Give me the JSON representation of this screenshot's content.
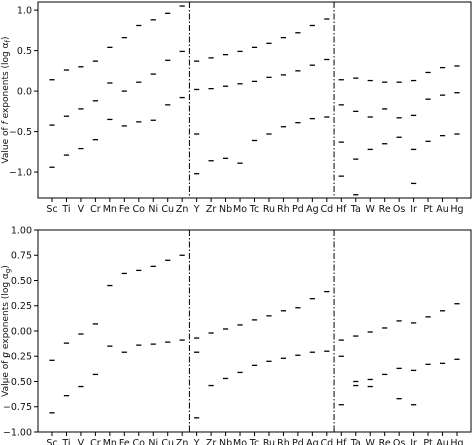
{
  "chart_data": [
    {
      "type": "scatter",
      "marker": "short horizontal dash",
      "ylabel": "Value of f exponents (log α_f)",
      "ylabel_parts": {
        "prefix": "Value of ",
        "var": "f",
        "middle": " exponents (log α",
        "sub": "f",
        "suffix": ")"
      },
      "ylim": [
        -1.32,
        1.1
      ],
      "yticks": [
        -1.0,
        -0.5,
        0.0,
        0.5,
        1.0
      ],
      "ytick_labels": [
        "−1.0",
        "−0.5",
        "0.0",
        "0.5",
        "1.0"
      ],
      "grid": false,
      "categories": [
        "Sc",
        "Ti",
        "V",
        "Cr",
        "Mn",
        "Fe",
        "Co",
        "Ni",
        "Cu",
        "Zn",
        "Y",
        "Zr",
        "Nb",
        "Mo",
        "Tc",
        "Ru",
        "Rh",
        "Pd",
        "Ag",
        "Cd",
        "Hf",
        "Ta",
        "W",
        "Re",
        "Os",
        "Ir",
        "Pt",
        "Au",
        "Hg"
      ],
      "group_separators_after": [
        "Zn",
        "Cd"
      ],
      "series": [
        {
          "values": [
            0.14,
            0.26,
            0.3,
            0.37,
            0.54,
            0.66,
            0.81,
            0.88,
            0.96,
            1.05,
            0.37,
            0.41,
            0.45,
            0.49,
            0.54,
            0.59,
            0.66,
            0.72,
            0.81,
            0.89,
            0.14,
            0.16,
            0.13,
            0.11,
            0.11,
            0.13,
            0.23,
            0.29,
            0.31
          ]
        },
        {
          "values": [
            -0.42,
            -0.31,
            -0.22,
            -0.12,
            0.1,
            0.0,
            0.11,
            0.21,
            0.38,
            0.49,
            0.02,
            0.03,
            0.06,
            0.09,
            0.12,
            0.17,
            0.2,
            0.25,
            0.32,
            0.39,
            -0.17,
            -0.25,
            -0.32,
            -0.22,
            -0.33,
            -0.3,
            -0.1,
            -0.05,
            -0.02
          ]
        },
        {
          "values": [
            -0.94,
            -0.79,
            -0.71,
            -0.6,
            -0.35,
            -0.43,
            -0.38,
            -0.36,
            -0.17,
            -0.08,
            -1.02,
            -0.86,
            -0.83,
            -0.89,
            -0.61,
            -0.53,
            -0.44,
            -0.39,
            -0.34,
            -0.32,
            -0.63,
            -0.84,
            -0.72,
            -0.65,
            -0.57,
            -0.72,
            -0.62,
            -0.55,
            -0.53
          ]
        },
        {
          "values": [
            null,
            null,
            null,
            null,
            null,
            null,
            null,
            null,
            null,
            null,
            -0.53,
            null,
            null,
            null,
            null,
            null,
            null,
            null,
            null,
            null,
            -1.05,
            -1.28,
            null,
            null,
            null,
            -1.14,
            null,
            null,
            null
          ]
        }
      ]
    },
    {
      "type": "scatter",
      "marker": "short horizontal dash",
      "ylabel": "Value of g exponents (log α_g)",
      "ylabel_parts": {
        "prefix": "Value of ",
        "var": "g",
        "middle": " exponents (log α",
        "sub": "g",
        "suffix": ")"
      },
      "ylim": [
        -1.0,
        1.0
      ],
      "yticks": [
        -1.0,
        -0.75,
        -0.5,
        -0.25,
        0.0,
        0.25,
        0.5,
        0.75,
        1.0
      ],
      "ytick_labels": [
        "−1.00",
        "−0.75",
        "−0.50",
        "−0.25",
        "0.00",
        "0.25",
        "0.50",
        "0.75",
        "1.00"
      ],
      "grid": false,
      "categories": [
        "Sc",
        "Ti",
        "V",
        "Cr",
        "Mn",
        "Fe",
        "Co",
        "Ni",
        "Cu",
        "Zn",
        "Y",
        "Zr",
        "Nb",
        "Mo",
        "Tc",
        "Ru",
        "Rh",
        "Pd",
        "Ag",
        "Cd",
        "Hf",
        "Ta",
        "W",
        "Re",
        "Os",
        "Ir",
        "Pt",
        "Au",
        "Hg"
      ],
      "group_separators_after": [
        "Zn",
        "Cd"
      ],
      "series": [
        {
          "values": [
            -0.29,
            -0.12,
            -0.03,
            0.07,
            0.45,
            0.57,
            0.6,
            0.64,
            0.7,
            0.75,
            -0.07,
            -0.02,
            0.02,
            0.06,
            0.11,
            0.15,
            0.2,
            0.23,
            0.32,
            0.39,
            -0.09,
            -0.05,
            -0.01,
            0.03,
            0.1,
            0.08,
            0.14,
            0.2,
            0.27
          ]
        },
        {
          "values": [
            -0.81,
            -0.64,
            -0.55,
            -0.43,
            -0.15,
            -0.21,
            -0.14,
            -0.13,
            -0.11,
            -0.09,
            -0.86,
            -0.54,
            -0.47,
            -0.41,
            -0.34,
            -0.3,
            -0.27,
            -0.24,
            -0.21,
            -0.2,
            -0.73,
            -0.5,
            -0.48,
            -0.43,
            -0.37,
            -0.39,
            -0.33,
            -0.32,
            -0.28
          ]
        },
        {
          "values": [
            null,
            null,
            null,
            null,
            null,
            null,
            null,
            null,
            null,
            null,
            -0.21,
            null,
            null,
            null,
            null,
            null,
            null,
            null,
            null,
            null,
            -0.25,
            -0.54,
            -0.55,
            null,
            -0.67,
            -0.73,
            null,
            null,
            null
          ]
        }
      ]
    }
  ]
}
